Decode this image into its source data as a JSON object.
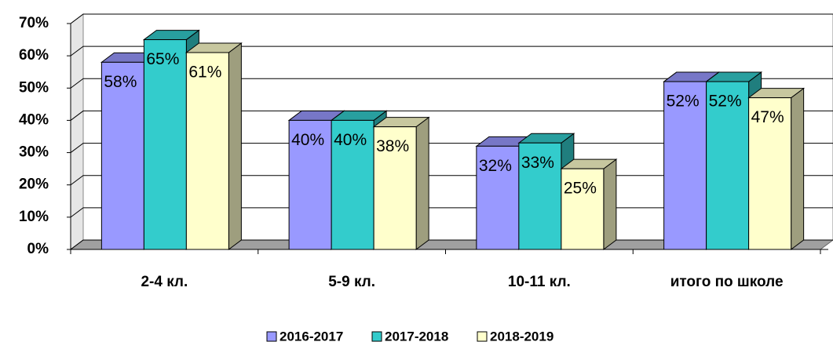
{
  "chart_data": {
    "type": "bar3d",
    "categories": [
      "2-4 кл.",
      "5-9 кл.",
      "10-11 кл.",
      "итого по школе"
    ],
    "series": [
      {
        "name": "2016-2017",
        "color": "#9999ff",
        "values": [
          58,
          40,
          32,
          52
        ],
        "value_labels": [
          "58%",
          "40%",
          "32%",
          "52%"
        ]
      },
      {
        "name": "2017-2018",
        "color": "#33cccc",
        "values": [
          65,
          40,
          33,
          52
        ],
        "value_labels": [
          "65%",
          "40%",
          "33%",
          "52%"
        ]
      },
      {
        "name": "2018-2019",
        "color": "#ffffcc",
        "values": [
          61,
          38,
          25,
          47
        ],
        "value_labels": [
          "61%",
          "38%",
          "25%",
          "47%"
        ]
      }
    ],
    "ylim": [
      0,
      70
    ],
    "yticks": [
      {
        "value": 0,
        "label": "0%"
      },
      {
        "value": 10,
        "label": "10%"
      },
      {
        "value": 20,
        "label": "20%"
      },
      {
        "value": 30,
        "label": "30%"
      },
      {
        "value": 40,
        "label": "40%"
      },
      {
        "value": 50,
        "label": "50%"
      },
      {
        "value": 60,
        "label": "60%"
      },
      {
        "value": 70,
        "label": "70%"
      }
    ],
    "grid": true,
    "legend": "bottom"
  }
}
